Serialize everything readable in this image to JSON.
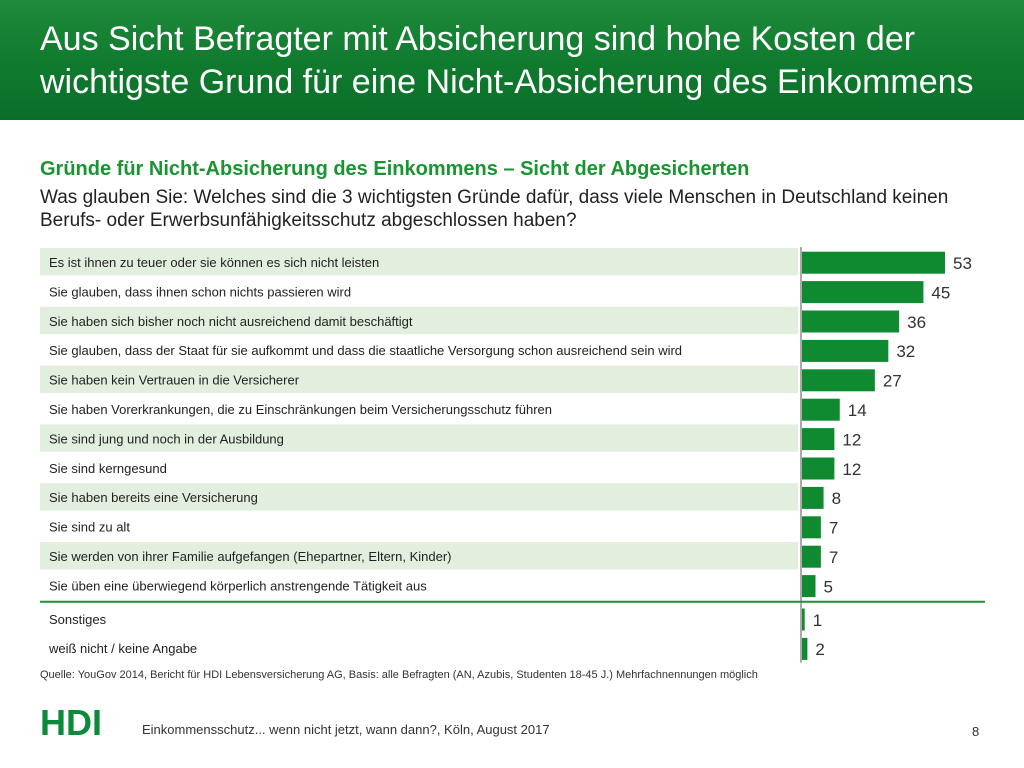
{
  "header": {
    "title": "Aus Sicht Befragter mit Absicherung sind hohe Kosten der wichtigste Grund für eine Nicht-Absicherung des Einkommens"
  },
  "subtitle": "Gründe für Nicht-Absicherung des Einkommens – Sicht der Abgesicherten",
  "question": "Was glauben Sie: Welches sind die 3 wichtigsten Gründe dafür, dass viele Menschen in Deutschland keinen Berufs- oder Erwerbsunfähigkeitsschutz abgeschlossen haben?",
  "chart_data": {
    "type": "bar",
    "orientation": "horizontal",
    "unit": "%",
    "categories": [
      "Es ist ihnen zu teuer oder sie können es sich nicht leisten",
      "Sie glauben, dass ihnen schon nichts passieren wird",
      "Sie haben sich bisher noch nicht ausreichend damit beschäftigt",
      "Sie glauben, dass der Staat für sie aufkommt und dass die staatliche Versorgung schon ausreichend sein wird",
      "Sie haben kein Vertrauen in die Versicherer",
      "Sie haben Vorerkrankungen, die zu Einschränkungen beim Versicherungsschutz führen",
      "Sie sind jung und noch in der Ausbildung",
      "Sie sind kerngesund",
      "Sie haben bereits eine Versicherung",
      "Sie sind zu alt",
      "Sie werden von ihrer Familie aufgefangen (Ehepartner, Eltern, Kinder)",
      "Sie üben eine überwiegend körperlich anstrengende Tätigkeit aus",
      "Sonstiges",
      "weiß nicht / keine Angabe"
    ],
    "values": [
      53,
      45,
      36,
      32,
      27,
      14,
      12,
      12,
      8,
      7,
      7,
      5,
      1,
      2
    ],
    "xlim": [
      0,
      53
    ]
  },
  "source": "Quelle: YouGov 2014, Bericht für HDI Lebensversicherung AG, Basis: alle Befragten (AN, Azubis, Studenten 18-45 J.) Mehrfachnennungen möglich",
  "footer": {
    "logo_text": "HDI",
    "text": "Einkommensschutz... wenn nicht jetzt, wann dann?, Köln, August 2017",
    "page_number": "8"
  },
  "colors": {
    "header_green": "#0f7a2e",
    "accent_green": "#1a9433",
    "bar_green": "#0f8a30",
    "row_stripe": "#e2efdf",
    "logo_green": "#0c8a3a"
  }
}
